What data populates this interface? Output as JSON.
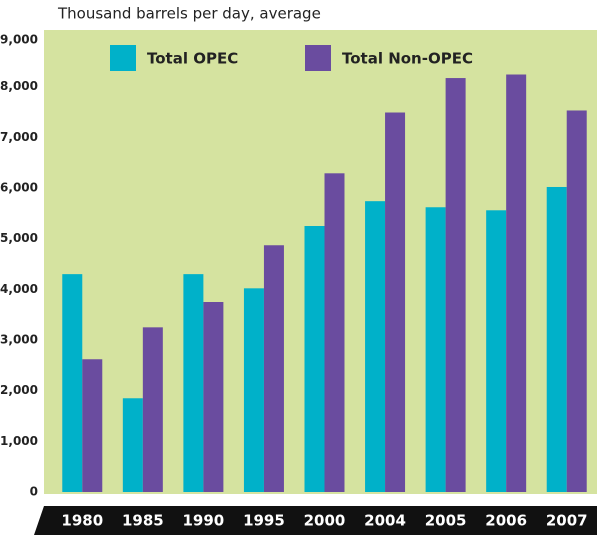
{
  "chart_data": {
    "type": "bar",
    "title": "Thousand barrels per day, average",
    "categories": [
      "1980",
      "1985",
      "1990",
      "1995",
      "2000",
      "2004",
      "2005",
      "2006",
      "2007"
    ],
    "series": [
      {
        "name": "Total OPEC",
        "color": "#00b1c9",
        "values": [
          4300,
          1850,
          4300,
          4020,
          5250,
          5740,
          5620,
          5560,
          6020
        ]
      },
      {
        "name": "Total Non-OPEC",
        "color": "#6a4c9f",
        "values": [
          2620,
          3250,
          3750,
          4870,
          6290,
          7490,
          8170,
          8240,
          7530
        ]
      }
    ],
    "ylim": [
      0,
      9000
    ],
    "yticks": [
      0,
      {
        "value": 1000,
        "label": "1,000"
      },
      {
        "value": 2000,
        "label": "2,000"
      },
      {
        "value": 3000,
        "label": "3,000"
      },
      {
        "value": 4000,
        "label": "4,000"
      },
      {
        "value": 5000,
        "label": "5,000"
      },
      {
        "value": 6000,
        "label": "6,000"
      },
      {
        "value": 7000,
        "label": "7,000"
      },
      {
        "value": 8000,
        "label": "8,000"
      },
      {
        "value": 9000,
        "label": "9,000"
      }
    ],
    "grid": false,
    "legend": "top"
  }
}
